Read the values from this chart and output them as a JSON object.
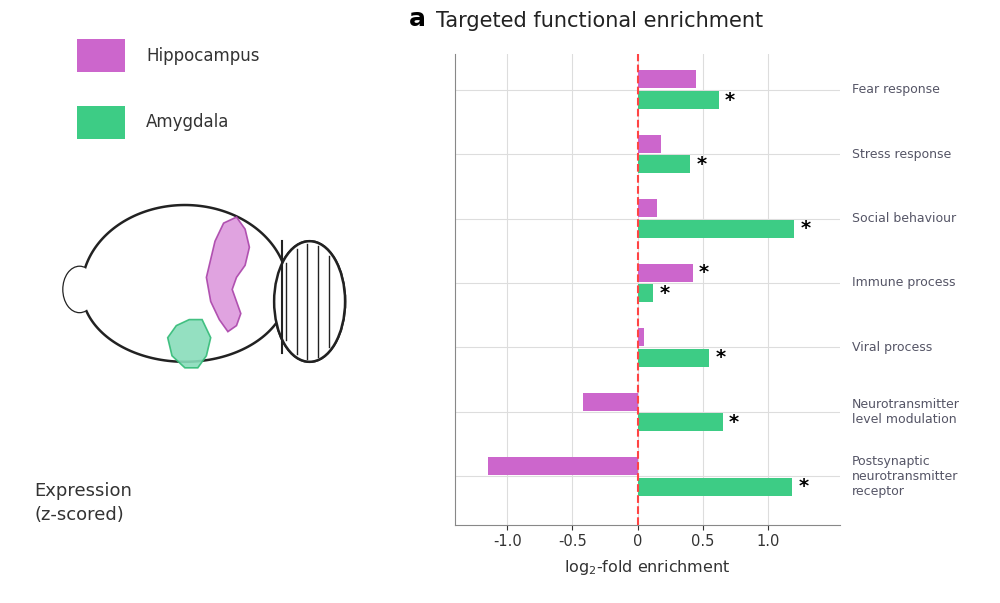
{
  "title": "Targeted functional enrichment",
  "panel_label": "a",
  "categories": [
    "Fear response",
    "Stress response",
    "Social behaviour",
    "Immune process",
    "Viral process",
    "Neurotransmitter\nlevel modulation",
    "Postsynaptic\nneurotransmitter\nreceptor"
  ],
  "hippocampus_values": [
    0.45,
    0.18,
    0.15,
    0.42,
    0.05,
    -0.42,
    -1.15
  ],
  "amygdala_values": [
    0.62,
    0.4,
    1.2,
    0.12,
    0.55,
    0.65,
    1.18
  ],
  "amygdala_sig": [
    true,
    true,
    true,
    true,
    true,
    true,
    true
  ],
  "hippocampus_sig": [
    false,
    false,
    false,
    true,
    false,
    false,
    false
  ],
  "hippocampus_color": "#CC66CC",
  "amygdala_color": "#3DCC85",
  "xlabel": "log$_2$-fold enrichment",
  "xlim": [
    -1.4,
    1.55
  ],
  "xticks": [
    -1.0,
    -0.5,
    0.0,
    0.5,
    1.0
  ],
  "xticklabels": [
    "-1.0",
    "-0.5",
    "0",
    "0.5",
    "1.0"
  ],
  "bar_height": 0.28,
  "background_color": "#ffffff",
  "grid_color": "#dddddd",
  "label_color": "#555566",
  "title_color": "#222222",
  "dashed_line_color": "#ff4444",
  "legend_hippocampus": "Hippocampus",
  "legend_amygdala": "Amygdala"
}
